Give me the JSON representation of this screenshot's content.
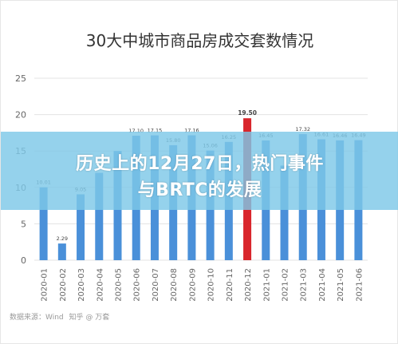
{
  "chart_data": {
    "type": "bar",
    "title": "30大中城市商品房成交套数情况",
    "categories": [
      "2020-01",
      "2020-02",
      "2020-03",
      "2020-04",
      "2020-05",
      "2020-06",
      "2020-07",
      "2020-08",
      "2020-09",
      "2020-10",
      "2020-11",
      "2020-12",
      "2021-01",
      "2021-02",
      "2021-03",
      "2021-04",
      "2021-05",
      "2021-06"
    ],
    "values": [
      10.01,
      2.29,
      9.05,
      12.0,
      15.0,
      17.1,
      17.15,
      15.8,
      17.16,
      15.06,
      16.25,
      19.5,
      16.45,
      13.0,
      17.32,
      16.61,
      16.46,
      16.49
    ],
    "data_labels": [
      "10.01",
      "2.29",
      "9.05",
      "",
      "",
      "17.10",
      "17.15",
      "15.80",
      "17.16",
      "15.06",
      "16.25",
      "19.50",
      "16.45",
      "",
      "17.32",
      "16.61",
      "16.46",
      "16.49"
    ],
    "ylim": [
      0,
      25
    ],
    "yticks": [
      0,
      5,
      10,
      15,
      20,
      25
    ],
    "xlabel": "",
    "ylabel": "",
    "grid": true,
    "bar_color": "#4a90d9",
    "highlight_color": "#d9262c"
  },
  "banner": {
    "line1": "历史上的12月27日，热门事件",
    "line2": "与BRTC的发展"
  },
  "source": "数据来源：Wind",
  "logo_text": "知乎 @ 万套"
}
